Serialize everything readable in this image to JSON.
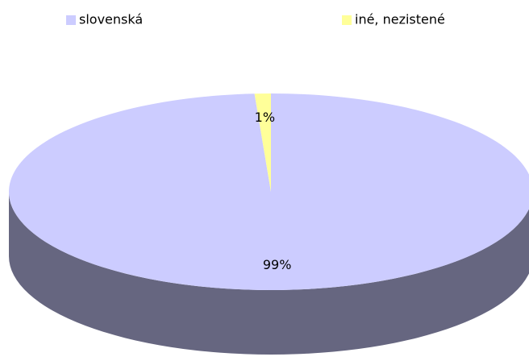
{
  "chart_data": {
    "type": "pie",
    "view": "3d",
    "categories": [
      "slovenská",
      "iné, nezistené"
    ],
    "values": [
      99,
      1
    ],
    "value_labels": [
      "99%",
      "1%"
    ],
    "colors": [
      "#ccccff",
      "#ffff99"
    ],
    "legend": "top"
  }
}
